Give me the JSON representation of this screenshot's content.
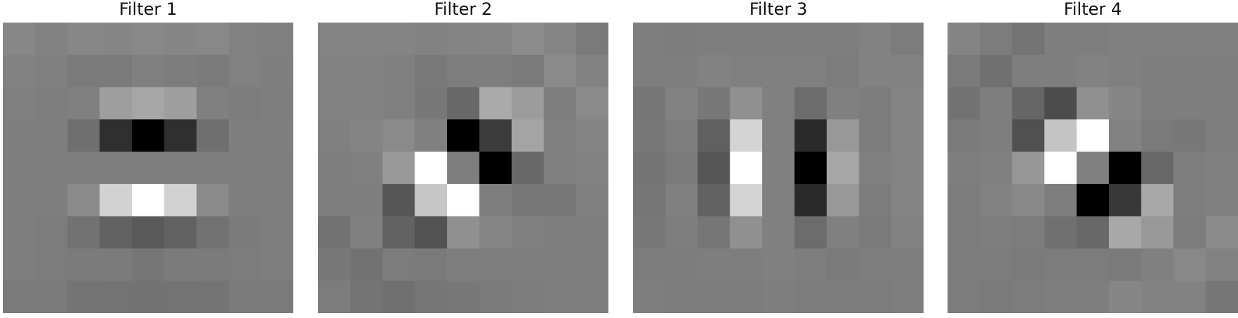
{
  "chart_data": [
    {
      "type": "heatmap",
      "title": "Filter 1",
      "colormap": "gray",
      "grid": false,
      "axes_visible": false,
      "values": [
        [
          135,
          130,
          135,
          134,
          136,
          134,
          136,
          129,
          128
        ],
        [
          130,
          128,
          122,
          122,
          128,
          125,
          122,
          129,
          127
        ],
        [
          128,
          126,
          128,
          158,
          166,
          158,
          128,
          124,
          126
        ],
        [
          127,
          127,
          111,
          47,
          0,
          47,
          111,
          127,
          127
        ],
        [
          126,
          126,
          126,
          126,
          126,
          126,
          126,
          126,
          126
        ],
        [
          126,
          126,
          138,
          210,
          255,
          210,
          138,
          126,
          126
        ],
        [
          126,
          124,
          114,
          98,
          90,
          98,
          114,
          123,
          126
        ],
        [
          126,
          124,
          123,
          123,
          118,
          123,
          123,
          124,
          126
        ],
        [
          122,
          122,
          116,
          115,
          114,
          115,
          116,
          122,
          122
        ]
      ]
    },
    {
      "type": "heatmap",
      "title": "Filter 2",
      "colormap": "gray",
      "grid": false,
      "axes_visible": false,
      "values": [
        [
          132,
          132,
          132,
          130,
          132,
          133,
          140,
          133,
          122
        ],
        [
          130,
          130,
          128,
          121,
          126,
          126,
          122,
          138,
          130
        ],
        [
          130,
          130,
          128,
          120,
          104,
          170,
          156,
          126,
          138
        ],
        [
          128,
          132,
          138,
          128,
          0,
          60,
          164,
          128,
          132
        ],
        [
          126,
          128,
          152,
          255,
          126,
          0,
          104,
          128,
          130
        ],
        [
          126,
          126,
          86,
          198,
          255,
          126,
          120,
          120,
          128
        ],
        [
          114,
          128,
          98,
          82,
          144,
          134,
          128,
          126,
          126
        ],
        [
          120,
          114,
          124,
          122,
          126,
          126,
          126,
          126,
          126
        ],
        [
          124,
          116,
          112,
          118,
          120,
          122,
          124,
          126,
          126
        ]
      ]
    },
    {
      "type": "heatmap",
      "title": "Filter 3",
      "colormap": "gray",
      "grid": false,
      "axes_visible": false,
      "values": [
        [
          126,
          124,
          126,
          126,
          126,
          126,
          126,
          130,
          124
        ],
        [
          126,
          126,
          130,
          128,
          128,
          128,
          124,
          130,
          130
        ],
        [
          118,
          130,
          120,
          144,
          128,
          108,
          128,
          124,
          132
        ],
        [
          120,
          126,
          96,
          212,
          128,
          42,
          152,
          124,
          132
        ],
        [
          116,
          122,
          86,
          255,
          128,
          0,
          166,
          128,
          132
        ],
        [
          118,
          128,
          98,
          212,
          128,
          42,
          152,
          124,
          132
        ],
        [
          120,
          126,
          118,
          144,
          128,
          108,
          128,
          122,
          130
        ],
        [
          124,
          124,
          126,
          126,
          128,
          126,
          122,
          126,
          126
        ],
        [
          126,
          124,
          124,
          124,
          126,
          124,
          124,
          124,
          126
        ]
      ]
    },
    {
      "type": "heatmap",
      "title": "Filter 4",
      "colormap": "gray",
      "grid": false,
      "axes_visible": false,
      "values": [
        [
          132,
          124,
          116,
          126,
          126,
          128,
          128,
          128,
          128
        ],
        [
          122,
          112,
          126,
          126,
          130,
          128,
          126,
          126,
          126
        ],
        [
          114,
          126,
          102,
          76,
          144,
          134,
          126,
          126,
          126
        ],
        [
          122,
          126,
          80,
          196,
          255,
          130,
          122,
          120,
          126
        ],
        [
          126,
          128,
          150,
          255,
          128,
          0,
          104,
          126,
          128
        ],
        [
          124,
          130,
          136,
          126,
          0,
          56,
          168,
          126,
          128
        ],
        [
          124,
          126,
          124,
          112,
          104,
          168,
          152,
          124,
          138
        ],
        [
          124,
          124,
          122,
          124,
          124,
          122,
          128,
          136,
          130
        ],
        [
          124,
          122,
          124,
          126,
          126,
          134,
          130,
          130,
          118
        ]
      ]
    }
  ]
}
